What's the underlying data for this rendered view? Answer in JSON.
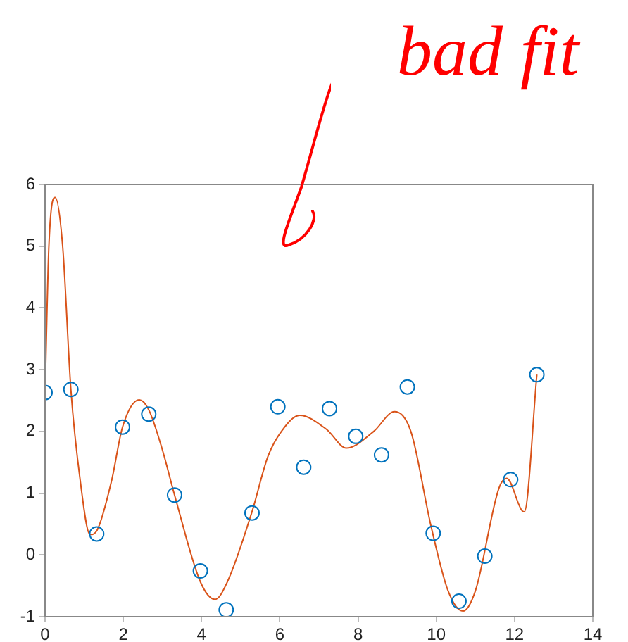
{
  "chart_data": {
    "type": "scatter",
    "annotations": [
      "bad fit"
    ],
    "xlim": [
      0,
      14
    ],
    "xticks": [
      0,
      2,
      4,
      6,
      8,
      10,
      12,
      14
    ],
    "ylim": [
      -1,
      6
    ],
    "yticks": [
      -1,
      0,
      1,
      2,
      3,
      4,
      5,
      6
    ],
    "grid": false,
    "legend": false,
    "series": [
      {
        "type": "scatter",
        "color": "#0072bd",
        "marker": "circle",
        "x": [
          0,
          0.66,
          1.32,
          1.98,
          2.65,
          3.31,
          3.97,
          4.63,
          5.29,
          5.95,
          6.61,
          7.27,
          7.94,
          8.6,
          9.26,
          9.92,
          10.58,
          11.24,
          11.9,
          12.57
        ],
        "values": [
          2.63,
          2.68,
          0.34,
          2.07,
          2.28,
          0.97,
          -0.26,
          -0.89,
          0.68,
          2.4,
          1.42,
          2.37,
          1.92,
          1.62,
          2.72,
          0.35,
          -0.75,
          -0.02,
          1.22,
          2.92
        ]
      },
      {
        "type": "line",
        "color": "#d95319",
        "marker": "none",
        "x": [
          0,
          0.1,
          0.26,
          0.45,
          0.66,
          0.9,
          1.15,
          1.33,
          1.7,
          1.98,
          2.41,
          2.65,
          3.0,
          3.31,
          3.98,
          4.35,
          4.65,
          5.28,
          5.7,
          6.04,
          6.51,
          7.2,
          7.7,
          8.4,
          8.93,
          9.35,
          9.86,
          10.3,
          10.68,
          11.0,
          11.6,
          11.8,
          12.2,
          12.25,
          12.57
        ],
        "values": [
          2.63,
          5.03,
          5.79,
          5.0,
          2.68,
          1.2,
          0.33,
          0.4,
          1.2,
          2.07,
          2.51,
          2.35,
          1.7,
          0.97,
          -0.45,
          -0.72,
          -0.45,
          0.68,
          1.6,
          2.0,
          2.26,
          2.03,
          1.73,
          2.0,
          2.32,
          2.0,
          0.48,
          -0.58,
          -0.91,
          -0.58,
          1.08,
          1.24,
          0.71,
          0.7,
          2.92
        ]
      }
    ]
  }
}
